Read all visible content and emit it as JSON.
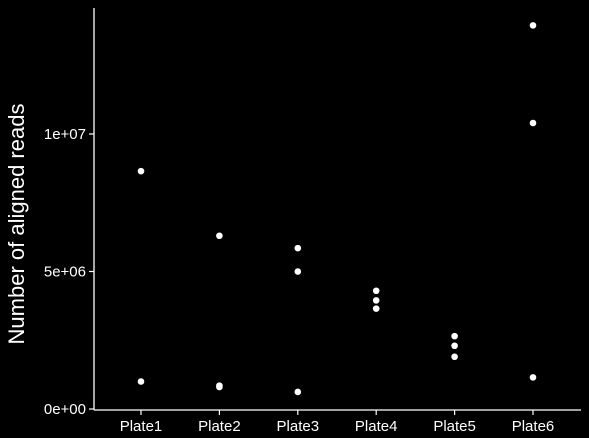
{
  "chart_data": {
    "type": "scatter",
    "title": "",
    "xlabel": "",
    "ylabel": "Number of aligned reads",
    "categories": [
      "Plate1",
      "Plate2",
      "Plate3",
      "Plate4",
      "Plate5",
      "Plate6"
    ],
    "y_tick_values": [
      0,
      5000000,
      10000000
    ],
    "y_tick_labels": [
      "0e+00",
      "5e+06",
      "1e+07"
    ],
    "ylim": [
      0,
      14500000
    ],
    "grid": false,
    "legend": "none",
    "background_color": "#000000",
    "foreground_color": "#ffffff",
    "points": [
      {
        "category": "Plate1",
        "y": 8650000
      },
      {
        "category": "Plate1",
        "y": 1000000
      },
      {
        "category": "Plate2",
        "y": 6300000
      },
      {
        "category": "Plate2",
        "y": 850000
      },
      {
        "category": "Plate2",
        "y": 800000
      },
      {
        "category": "Plate3",
        "y": 5850000
      },
      {
        "category": "Plate3",
        "y": 5000000
      },
      {
        "category": "Plate3",
        "y": 620000
      },
      {
        "category": "Plate4",
        "y": 4300000
      },
      {
        "category": "Plate4",
        "y": 3950000
      },
      {
        "category": "Plate4",
        "y": 3650000
      },
      {
        "category": "Plate5",
        "y": 2650000
      },
      {
        "category": "Plate5",
        "y": 2300000
      },
      {
        "category": "Plate5",
        "y": 1900000
      },
      {
        "category": "Plate6",
        "y": 13950000
      },
      {
        "category": "Plate6",
        "y": 10400000
      },
      {
        "category": "Plate6",
        "y": 1150000
      }
    ]
  }
}
